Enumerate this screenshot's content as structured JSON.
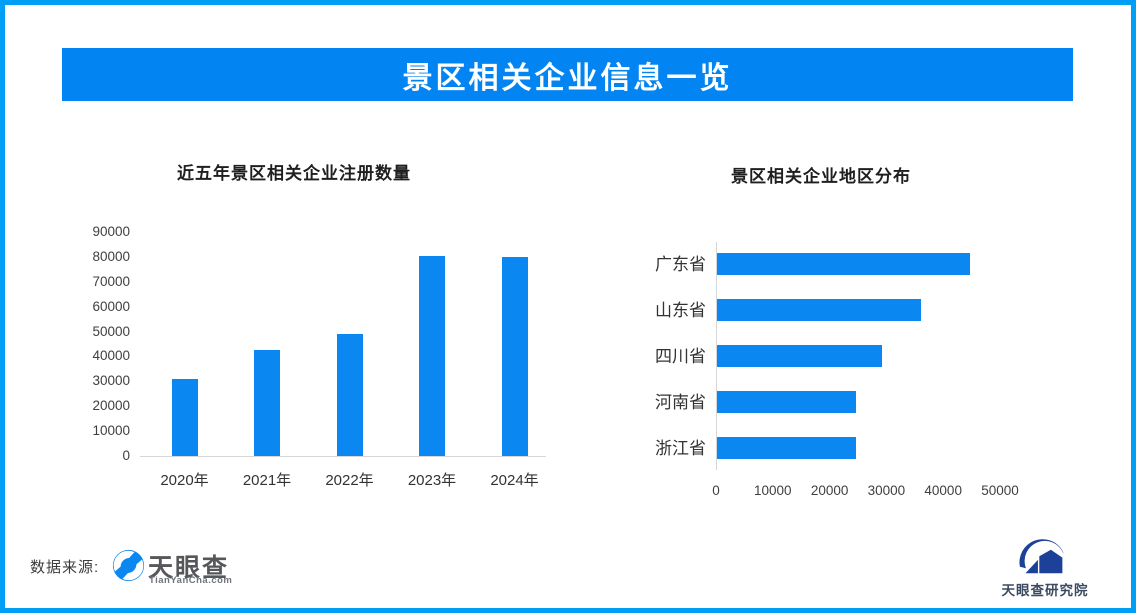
{
  "colors": {
    "frame_border": "#009ff5",
    "banner_bg": "#0284f2",
    "banner_text": "#ffffff",
    "bar_blue": "#0a87f0",
    "axis_line": "#d6d6d6",
    "title_text": "#1f1f1f",
    "label_text": "#3f3f3f",
    "tianyancha_gray": "#55575a",
    "tianyancha_sub": "#6f747a",
    "institute_navy": "#1d4098",
    "institute_text": "#3b4a61"
  },
  "header": {
    "title": "景区相关企业信息一览"
  },
  "chart_data": [
    {
      "type": "bar",
      "orientation": "vertical",
      "title": "近五年景区相关企业注册数量",
      "categories": [
        "2020年",
        "2021年",
        "2022年",
        "2023年",
        "2024年"
      ],
      "values": [
        31000,
        42500,
        49000,
        80500,
        80000
      ],
      "xlabel": "",
      "ylabel": "",
      "ylim": [
        0,
        90000
      ],
      "ytick_step": 10000,
      "bar_color": "#0a87f0",
      "grid": false,
      "legend": false
    },
    {
      "type": "bar",
      "orientation": "horizontal",
      "title": "景区相关企业地区分布",
      "categories": [
        "广东省",
        "山东省",
        "四川省",
        "河南省",
        "浙江省"
      ],
      "values": [
        44500,
        36000,
        29000,
        24500,
        24500
      ],
      "xlabel": "",
      "ylabel": "",
      "xlim": [
        0,
        50000
      ],
      "xtick_step": 10000,
      "bar_color": "#0a87f0",
      "grid": false,
      "legend": false
    }
  ],
  "footer": {
    "source_label": "数据来源:",
    "tianyancha_logo_text": "天眼查",
    "tianyancha_logo_sub": "TianYanCha.com",
    "research_institute": "天眼查研究院"
  }
}
